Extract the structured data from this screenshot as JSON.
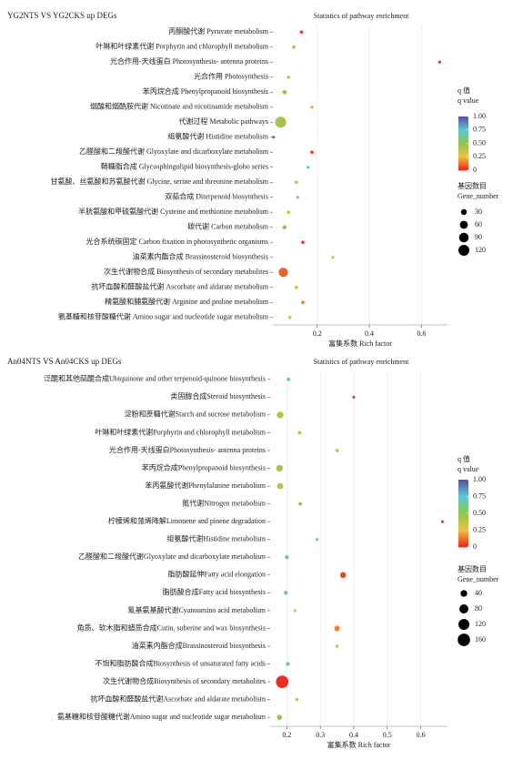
{
  "chart_data": [
    {
      "type": "bubble",
      "header": "YG2NTS VS YG2CKS up DEGs",
      "title": "Statistics of pathway enrichment",
      "xlabel": "富集系数 Rich factor",
      "categories": [
        "丙酮酸代谢 Pyruvate metabolism",
        "叶啉和叶绿素代谢 Porphyrin and chlorophyll metabolism",
        "光合作用-天线蛋白 Photosynthesis- antenna proteins",
        "光合作用 Photosynthesis",
        "苯丙烷合成 Phenylpropanoid biosynthesis",
        "烟酸和烟酰胺代谢 Nicotinate and nicotinamide metabolism",
        "代谢过程 Metabolic pathways",
        "组氨酸代谢 Histidine metabolism",
        "乙醛酸和二羧酸代谢 Glyoxylate and dicarboxylate metabolism",
        "鞘糖脂合成 Glycosphingolipid biosynthesis-globo series",
        "甘氨酸、丝氨酸和苏氨酸代谢 Glycine, serine and threonine metabolism",
        "双萜合成 Diterpenoid biosynthesis",
        "半胱氨酸和甲硫氨酸代谢 Cysteine and methionine metabolism",
        "碳代谢 Carbon metabolism",
        "光合系统碳固定 Carbon fixation in photosynthetic organisms",
        "油菜素内酯合成 Brassinosteroid biosynthesis",
        "次生代谢物合成 Biosynthesis of secondary metabolites",
        "抗坏血酸和醛酸盐代谢 Ascorbate and aldarate metabolism",
        "精氨酸和脯氨酸代谢 Arginine and proline metabolism",
        "氨基糖和核苷酸糖代谢 Amino sugar and nucleotide sugar metabolism"
      ],
      "values": [
        0.14,
        0.11,
        0.67,
        0.09,
        0.075,
        0.18,
        0.06,
        0.033,
        0.18,
        0.165,
        0.12,
        0.125,
        0.09,
        0.075,
        0.145,
        0.26,
        0.07,
        0.12,
        0.145,
        0.095
      ],
      "q_values": [
        0.05,
        0.4,
        0.02,
        0.3,
        0.45,
        0.2,
        0.45,
        0.9,
        0.05,
        0.7,
        0.35,
        0.6,
        0.35,
        0.5,
        0.05,
        0.35,
        0.1,
        0.35,
        0.15,
        0.3
      ],
      "gene_numbers": [
        8,
        8,
        5,
        8,
        15,
        5,
        125,
        5,
        8,
        5,
        8,
        5,
        8,
        12,
        8,
        5,
        85,
        8,
        8,
        8
      ],
      "xlim": [
        0.03,
        0.7
      ],
      "xticks": [
        0.2,
        0.4,
        0.6
      ],
      "grid": true,
      "color_legend": {
        "title": [
          "q 值",
          "q value"
        ],
        "lim": [
          0,
          1
        ],
        "colors": [
          "#e8231b",
          "#f0c040",
          "#8dc84a",
          "#5cc8d8",
          "#574a9c"
        ],
        "ticks": [
          {
            "value": 1,
            "label": "1.00"
          },
          0.75,
          {
            "value": 0.5,
            "label": "0.50"
          },
          0.25,
          0
        ]
      },
      "size_legend": {
        "title": [
          "基因数目",
          "Gene_number"
        ],
        "ticks": [
          30,
          60,
          90,
          120
        ]
      }
    },
    {
      "type": "bubble",
      "header": "An04NTS VS An04CKS up DEGs",
      "title": "Statistics of pathway enrichment",
      "xlabel": "富集系数 Rich factor",
      "categories": [
        "泛醌和其他萜醌合成Ubiquinone and other terpenoid-quinone biosynthesis",
        "类固醇合成Steroid biosynthesis",
        "淀粉和蔗糖代谢Starch and sucrose metabolism",
        "叶啉和叶绿素代谢Porphyrin and chlorophyll metabolism",
        "光合作用-天线蛋白Photosynthesis- antenna proteins",
        "苯丙烷合成Phenylpropanoid biosynthesis",
        "苯丙氨酸代谢Phenylalanine metabolism",
        "氮代谢Nitrogen metabolism",
        "柠檬烯和蒎烯降解Limonene and pinene degradation",
        "组氨酸代谢Histidine metabolism",
        "乙醛酸和二羧酸代谢Glyoxylate and dicarboxylate metabolism",
        "脂肪酸延伸Fatty acid elongation",
        "脂肪酸合成Fatty acid biosynthesis",
        "氰基氨基酸代谢Cyanoamino acid metabolism",
        "角质、软木脂和蜡质合成Cutin, suberine and wax biosynthesis",
        "油菜素内酯合成Brassinosteroid biosynthesis",
        "不饱和脂肪酸合成Biosynthesis of unsaturated fatty acids",
        "次生代谢物合成Biosynthesis of secondary metabolites",
        "抗坏血酸和醛酸盐代谢Ascorbate and aldarate metabolism",
        "氨基糖和核苷酸糖代谢Amino sugar and nucleotide sugar metabolism"
      ],
      "values": [
        0.205,
        0.4,
        0.18,
        0.238,
        0.35,
        0.178,
        0.18,
        0.24,
        0.665,
        0.29,
        0.2,
        0.368,
        0.197,
        0.224,
        0.35,
        0.35,
        0.203,
        0.186,
        0.23,
        0.178
      ],
      "q_values": [
        0.65,
        0.05,
        0.4,
        0.35,
        0.35,
        0.45,
        0.4,
        0.5,
        0.05,
        0.7,
        0.65,
        0.05,
        0.65,
        0.3,
        0.15,
        0.3,
        0.6,
        0.02,
        0.3,
        0.5
      ],
      "gene_numbers": [
        8,
        5,
        40,
        8,
        8,
        40,
        35,
        8,
        5,
        5,
        12,
        30,
        12,
        5,
        25,
        8,
        12,
        160,
        8,
        20
      ],
      "xlim": [
        0.15,
        0.68
      ],
      "xticks": [
        0.2,
        0.3,
        0.4,
        0.5,
        0.6
      ],
      "grid": true,
      "color_legend": {
        "title": [
          "q 值",
          "q value"
        ],
        "lim": [
          0,
          1
        ],
        "colors": [
          "#e8231b",
          "#f0c040",
          "#8dc84a",
          "#5cc8d8",
          "#574a9c"
        ],
        "ticks": [
          {
            "value": 1,
            "label": "1.00"
          },
          0.75,
          {
            "value": 0.5,
            "label": "0.50"
          },
          0.25,
          0
        ]
      },
      "size_legend": {
        "title": [
          "基因数目",
          "Gene_number"
        ],
        "ticks": [
          40,
          80,
          120,
          160
        ]
      }
    }
  ]
}
